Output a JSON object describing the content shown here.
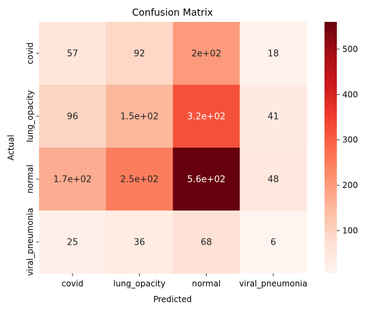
{
  "chart_data": {
    "type": "heatmap",
    "title": "Confusion Matrix",
    "xlabel": "Predicted",
    "ylabel": "Actual",
    "x_categories": [
      "covid",
      "lung_opacity",
      "normal",
      "viral_pneumonia"
    ],
    "y_categories": [
      "covid",
      "lung_opacity",
      "normal",
      "viral_pneumonia"
    ],
    "values": [
      [
        57,
        92,
        200,
        18
      ],
      [
        96,
        150,
        320,
        41
      ],
      [
        170,
        250,
        560,
        48
      ],
      [
        25,
        36,
        68,
        6
      ]
    ],
    "cell_labels": [
      [
        "57",
        "92",
        "2e+02",
        "18"
      ],
      [
        "96",
        "1.5e+02",
        "3.2e+02",
        "41"
      ],
      [
        "1.7e+02",
        "2.5e+02",
        "5.6e+02",
        "48"
      ],
      [
        "25",
        "36",
        "68",
        "6"
      ]
    ],
    "colormap": "Reds",
    "colorbar_range": [
      6,
      560
    ],
    "colorbar_ticks": [
      100,
      200,
      300,
      400,
      500
    ]
  }
}
